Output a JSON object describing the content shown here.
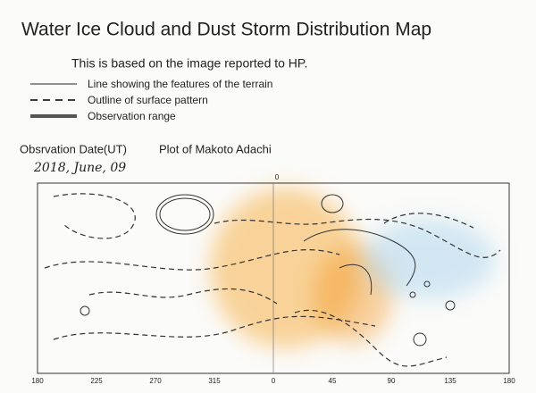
{
  "header": {
    "title": "Water Ice Cloud and Dust Storm Distribution Map",
    "subtitle": "This is based on the image reported to HP."
  },
  "legend": [
    "Line showing the features of the terrain",
    "Outline of surface pattern",
    "Observation range"
  ],
  "info": {
    "date_label": "Obsrvation Date(UT)",
    "observer": "Plot of Makoto Adachi",
    "date": "2018, June, 09"
  },
  "map": {
    "top_label": "0",
    "longitude_labels": [
      "180",
      "225",
      "270",
      "315",
      "0",
      "45",
      "90",
      "135",
      "180"
    ]
  }
}
